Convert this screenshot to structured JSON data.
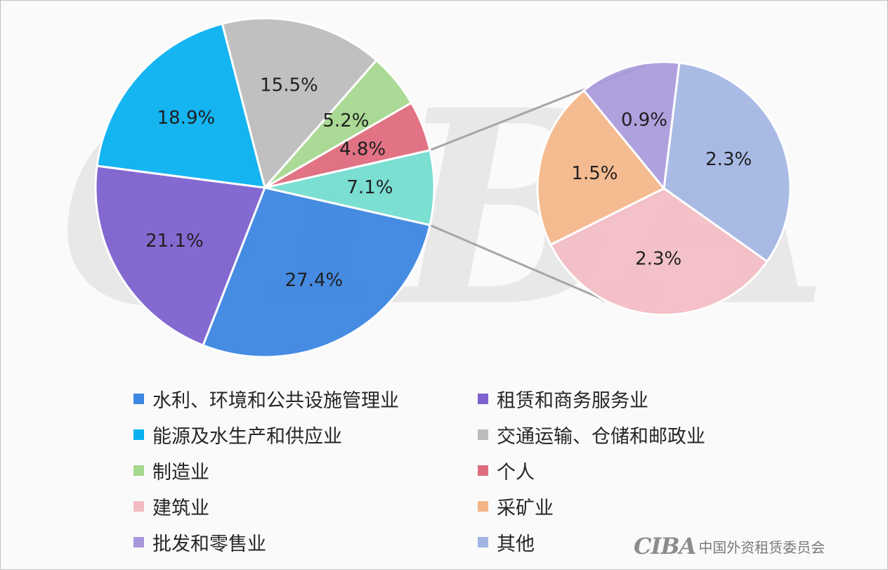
{
  "chart_data": {
    "type": "pie",
    "main_pie": {
      "slices": [
        {
          "label": "7.1%",
          "value": 7.1,
          "color": "#74DDD0"
        },
        {
          "label": "27.4%",
          "value": 27.4,
          "color": "#3D86E2"
        },
        {
          "label": "21.1%",
          "value": 21.1,
          "color": "#7D61CF"
        },
        {
          "label": "18.9%",
          "value": 18.9,
          "color": "#08B1F1"
        },
        {
          "label": "15.5%",
          "value": 15.5,
          "color": "#BDBDBD"
        },
        {
          "label": "5.2%",
          "value": 5.2,
          "color": "#A5D88F"
        },
        {
          "label": "4.8%",
          "value": 4.8,
          "color": "#DF6C7D"
        }
      ]
    },
    "sub_pie": {
      "parent_value": 7.1,
      "slices": [
        {
          "label": "2.3%",
          "value": 2.3,
          "color": "#A2B5E3"
        },
        {
          "label": "2.3%",
          "value": 2.3,
          "color": "#F2BCC2"
        },
        {
          "label": "1.5%",
          "value": 1.5,
          "color": "#F4B588"
        },
        {
          "label": "0.9%",
          "value": 0.9,
          "color": "#A898DB"
        }
      ]
    },
    "legend": [
      {
        "label": "水利、环境和公共设施管理业",
        "color": "#3D86E2"
      },
      {
        "label": "租赁和商务服务业",
        "color": "#7D61CF"
      },
      {
        "label": "能源及水生产和供应业",
        "color": "#08B1F1"
      },
      {
        "label": "交通运输、仓储和邮政业",
        "color": "#BDBDBD"
      },
      {
        "label": "制造业",
        "color": "#A5D88F"
      },
      {
        "label": "个人",
        "color": "#DF6C7D"
      },
      {
        "label": "建筑业",
        "color": "#F2BCC2"
      },
      {
        "label": "采矿业",
        "color": "#F4B588"
      },
      {
        "label": "批发和零售业",
        "color": "#A898DB"
      },
      {
        "label": "其他",
        "color": "#A2B5E3"
      }
    ],
    "legend_placement": "bottom"
  },
  "watermark": {
    "text": "CIBA"
  },
  "brand": {
    "logo": "CIBA",
    "name": "中国外资租赁委员会"
  }
}
